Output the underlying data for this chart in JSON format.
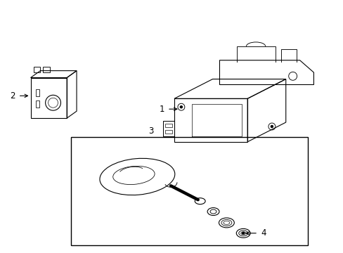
{
  "background_color": "#ffffff",
  "line_color": "#000000",
  "fig_width": 4.89,
  "fig_height": 3.6,
  "dpi": 100,
  "parts": {
    "part1_label": "1",
    "part2_label": "2",
    "part3_label": "3",
    "part4_label": "4"
  },
  "label_fontsize": 8.5
}
